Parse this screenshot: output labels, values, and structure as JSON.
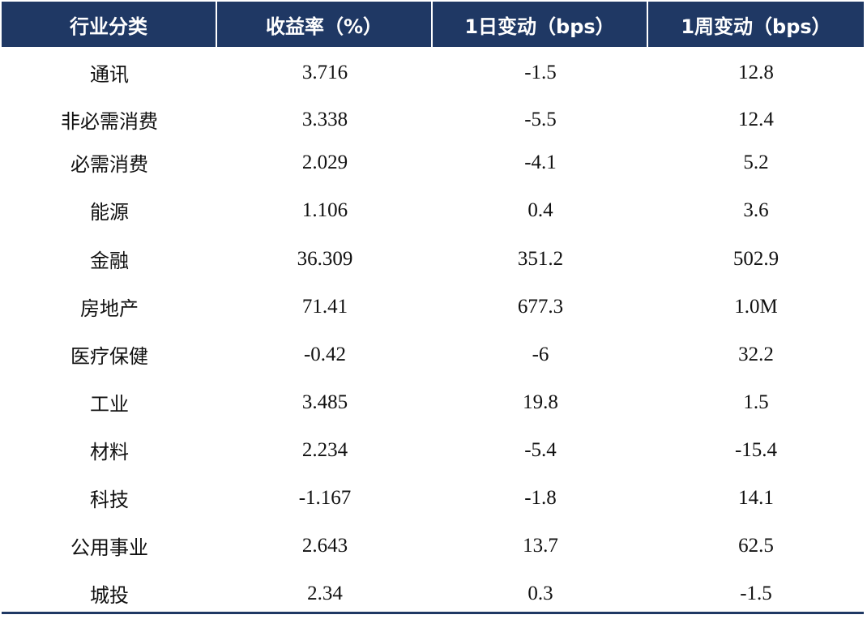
{
  "table": {
    "headers": [
      "行业分类",
      "收益率（%）",
      "1日变动（bps）",
      "1周变动（bps）"
    ],
    "rows": [
      [
        "通讯",
        "3.716",
        "-1.5",
        "12.8"
      ],
      [
        "非必需消费",
        "3.338",
        "-5.5",
        "12.4"
      ],
      [
        "必需消费",
        "2.029",
        "-4.1",
        "5.2"
      ],
      [
        "能源",
        "1.106",
        "0.4",
        "3.6"
      ],
      [
        "金融",
        "36.309",
        "351.2",
        "502.9"
      ],
      [
        "房地产",
        "71.41",
        "677.3",
        "1.0M"
      ],
      [
        "医疗保健",
        "-0.42",
        "-6",
        "32.2"
      ],
      [
        "工业",
        "3.485",
        "19.8",
        "1.5"
      ],
      [
        "材料",
        "2.234",
        "-5.4",
        "-15.4"
      ],
      [
        "科技",
        "-1.167",
        "-1.8",
        "14.1"
      ],
      [
        "公用事业",
        "2.643",
        "13.7",
        "62.5"
      ],
      [
        "城投",
        "2.34",
        "0.3",
        "-1.5"
      ]
    ]
  },
  "colors": {
    "header_bg": "#1f3864",
    "header_text": "#ffffff",
    "body_text": "#111111"
  }
}
